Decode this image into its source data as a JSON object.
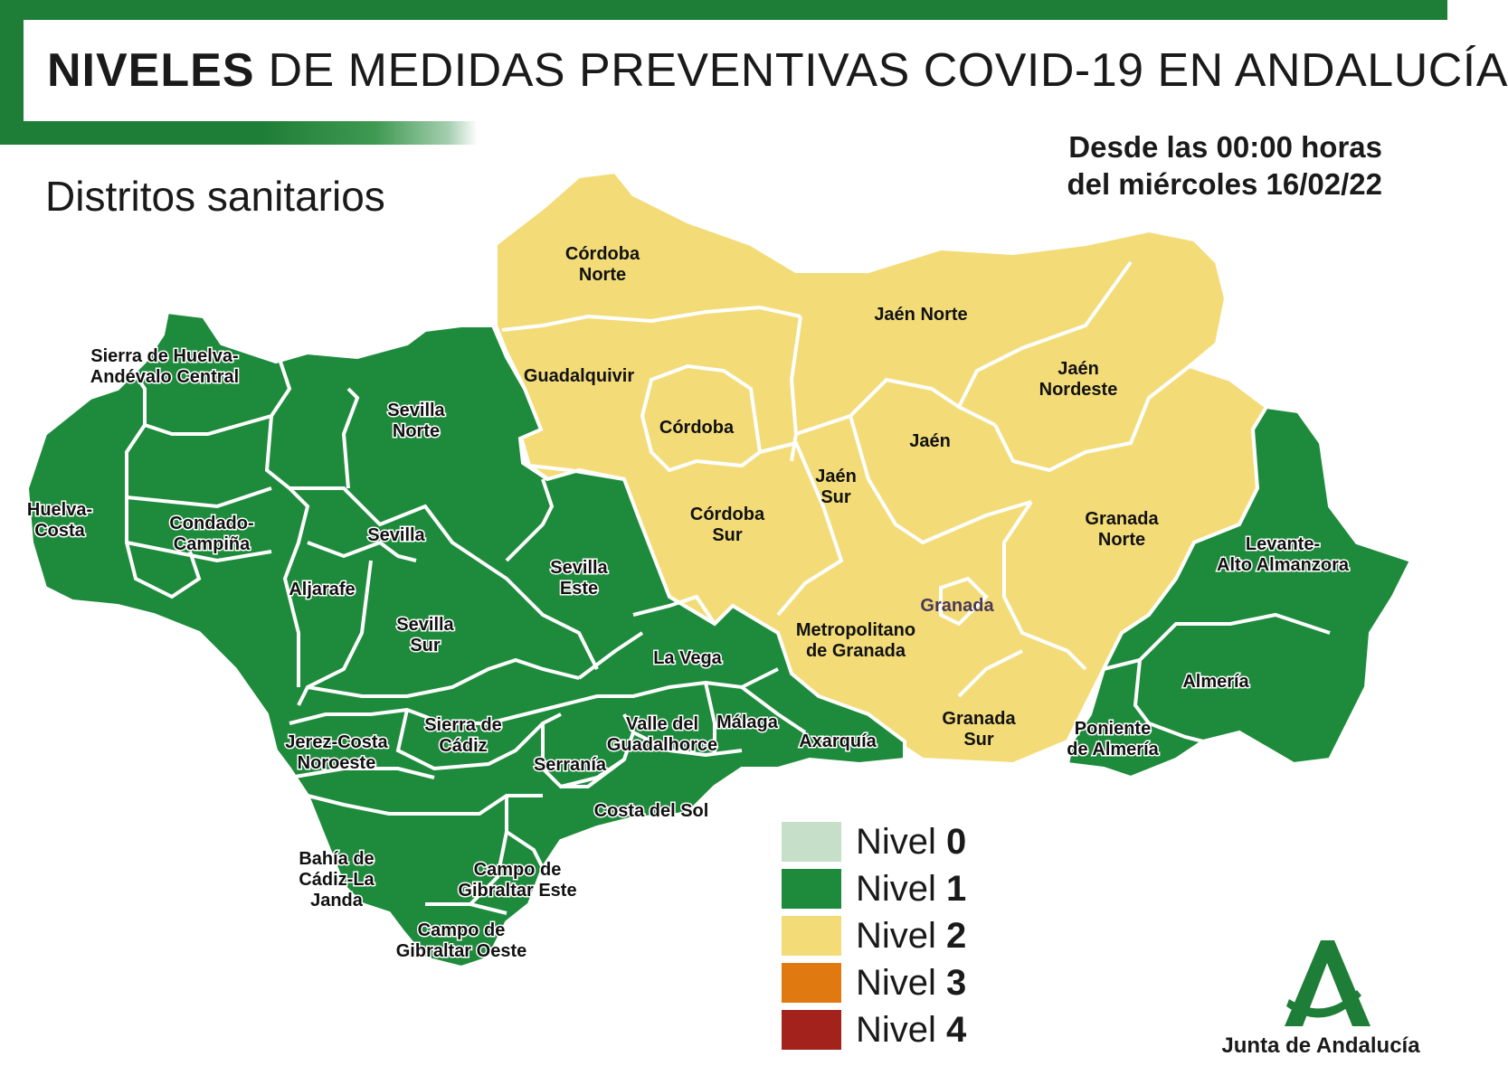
{
  "header": {
    "title_bold": "NIVELES",
    "title_rest": "DE MEDIDAS PREVENTIVAS COVID-19 EN ANDALUCÍA",
    "subtitle": "Distritos sanitarios",
    "date_line1": "Desde las 00:00 horas",
    "date_line2": "del miércoles 16/02/22"
  },
  "colors": {
    "brand_green": "#1e7d36",
    "nivel_0": "#c5dfc8",
    "nivel_1": "#1e8b3c",
    "nivel_2": "#f3dc78",
    "nivel_3": "#e07a10",
    "nivel_4": "#a3221c"
  },
  "districts": [
    {
      "name": "Sierra de Huelva-Andévalo Central",
      "lines": [
        "Sierra de Huelva-",
        "Andévalo Central"
      ],
      "nivel": 1
    },
    {
      "name": "Huelva-Costa",
      "lines": [
        "Huelva-",
        "Costa"
      ],
      "nivel": 1
    },
    {
      "name": "Condado-Campiña",
      "lines": [
        "Condado-",
        "Campiña"
      ],
      "nivel": 1
    },
    {
      "name": "Sevilla Norte",
      "lines": [
        "Sevilla",
        "Norte"
      ],
      "nivel": 1
    },
    {
      "name": "Sevilla",
      "lines": [
        "Sevilla"
      ],
      "nivel": 1
    },
    {
      "name": "Aljarafe",
      "lines": [
        "Aljarafe"
      ],
      "nivel": 1
    },
    {
      "name": "Sevilla Sur",
      "lines": [
        "Sevilla",
        "Sur"
      ],
      "nivel": 1
    },
    {
      "name": "Sevilla Este",
      "lines": [
        "Sevilla",
        "Este"
      ],
      "nivel": 1
    },
    {
      "name": "Jerez-Costa Noroeste",
      "lines": [
        "Jerez-Costa",
        "Noroeste"
      ],
      "nivel": 1
    },
    {
      "name": "Sierra de Cádiz",
      "lines": [
        "Sierra de",
        "Cádiz"
      ],
      "nivel": 1
    },
    {
      "name": "Bahía de Cádiz-La Janda",
      "lines": [
        "Bahía de",
        "Cádiz-La",
        "Janda"
      ],
      "nivel": 1
    },
    {
      "name": "Campo de Gibraltar Este",
      "lines": [
        "Campo de",
        "Gibraltar Este"
      ],
      "nivel": 1
    },
    {
      "name": "Campo de Gibraltar Oeste",
      "lines": [
        "Campo de",
        "Gibraltar Oeste"
      ],
      "nivel": 1
    },
    {
      "name": "Serranía",
      "lines": [
        "Serranía"
      ],
      "nivel": 1
    },
    {
      "name": "La Vega",
      "lines": [
        "La Vega"
      ],
      "nivel": 1
    },
    {
      "name": "Valle del Guadalhorce",
      "lines": [
        "Valle del",
        "Guadalhorce"
      ],
      "nivel": 1
    },
    {
      "name": "Málaga",
      "lines": [
        "Málaga"
      ],
      "nivel": 1
    },
    {
      "name": "Axarquía",
      "lines": [
        "Axarquía"
      ],
      "nivel": 1
    },
    {
      "name": "Costa del Sol",
      "lines": [
        "Costa del Sol"
      ],
      "nivel": 1
    },
    {
      "name": "Córdoba Norte",
      "lines": [
        "Córdoba",
        "Norte"
      ],
      "nivel": 2
    },
    {
      "name": "Guadalquivir",
      "lines": [
        "Guadalquivir"
      ],
      "nivel": 2
    },
    {
      "name": "Córdoba",
      "lines": [
        "Córdoba"
      ],
      "nivel": 2
    },
    {
      "name": "Córdoba Sur",
      "lines": [
        "Córdoba",
        "Sur"
      ],
      "nivel": 2
    },
    {
      "name": "Jaén Norte",
      "lines": [
        "Jaén Norte"
      ],
      "nivel": 2
    },
    {
      "name": "Jaén Nordeste",
      "lines": [
        "Jaén",
        "Nordeste"
      ],
      "nivel": 2
    },
    {
      "name": "Jaén",
      "lines": [
        "Jaén"
      ],
      "nivel": 2
    },
    {
      "name": "Jaén Sur",
      "lines": [
        "Jaén",
        "Sur"
      ],
      "nivel": 2
    },
    {
      "name": "Granada Norte",
      "lines": [
        "Granada",
        "Norte"
      ],
      "nivel": 2
    },
    {
      "name": "Metropolitano de Granada",
      "lines": [
        "Metropolitano",
        "de Granada"
      ],
      "nivel": 2
    },
    {
      "name": "Granada Sur",
      "lines": [
        "Granada",
        "Sur"
      ],
      "nivel": 2
    },
    {
      "name": "Levante-Alto Almanzora",
      "lines": [
        "Levante-",
        "Alto Almanzora"
      ],
      "nivel": 1
    },
    {
      "name": "Almería",
      "lines": [
        "Almería"
      ],
      "nivel": 1
    },
    {
      "name": "Poniente de Almería",
      "lines": [
        "Poniente",
        "de Almería"
      ],
      "nivel": 1
    }
  ],
  "city_label": "Granada",
  "legend": [
    {
      "prefix": "Nivel",
      "num": "0",
      "color": "#c5dfc8"
    },
    {
      "prefix": "Nivel",
      "num": "1",
      "color": "#1e8b3c"
    },
    {
      "prefix": "Nivel",
      "num": "2",
      "color": "#f3dc78"
    },
    {
      "prefix": "Nivel",
      "num": "3",
      "color": "#e07a10"
    },
    {
      "prefix": "Nivel",
      "num": "4",
      "color": "#a3221c"
    }
  ],
  "logo": {
    "text": "Junta de Andalucía"
  }
}
